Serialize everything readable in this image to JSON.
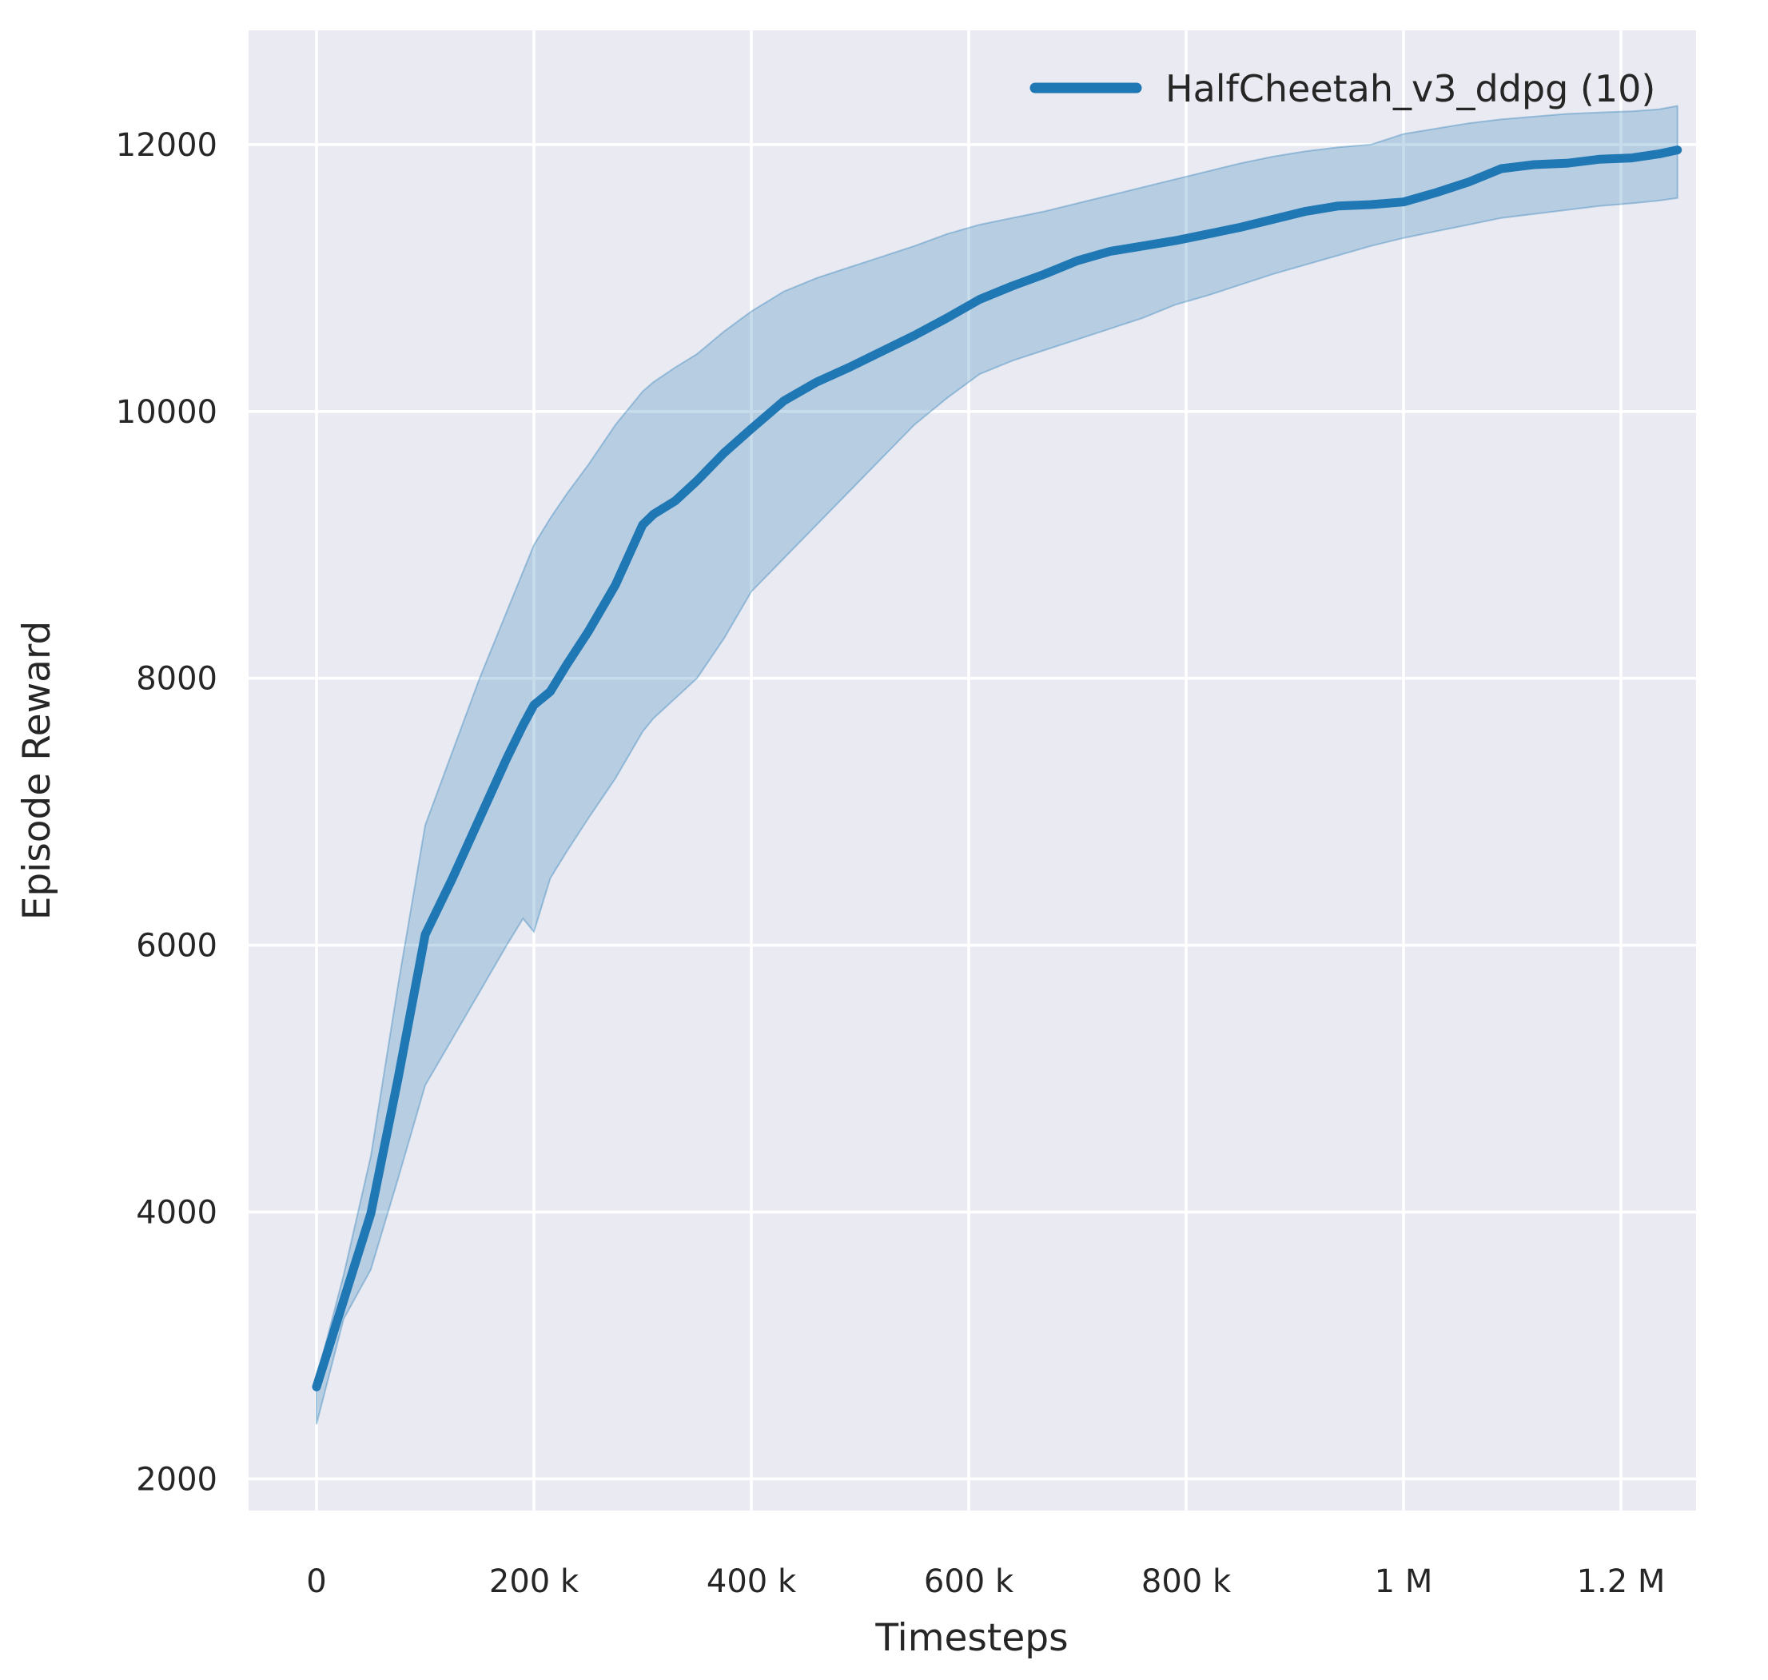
{
  "chart_data": {
    "type": "line",
    "title": "",
    "xlabel": "Timesteps",
    "ylabel": "Episode Reward",
    "legend_position": "upper right",
    "grid": true,
    "style": "seaborn-darkgrid",
    "colors": {
      "line": "#1f77b4",
      "band_fill": "rgba(31,119,180,0.25)",
      "band_edge": "rgba(31,119,180,0.35)",
      "plot_background": "#eaeaf2",
      "gridline": "#ffffff",
      "text": "#262626"
    },
    "xlim": [
      -62500,
      1269100
    ],
    "ylim": [
      1763,
      12856
    ],
    "xticks": [
      0,
      200000,
      400000,
      600000,
      800000,
      1000000,
      1200000
    ],
    "xtick_labels": [
      "0",
      "200 k",
      "400 k",
      "600 k",
      "800 k",
      "1 M",
      "1.2 M"
    ],
    "yticks": [
      2000,
      4000,
      6000,
      8000,
      10000,
      12000
    ],
    "ytick_labels": [
      "2000",
      "4000",
      "6000",
      "8000",
      "10000",
      "12000"
    ],
    "series": [
      {
        "name": "HalfCheetah_v3_ddpg (10)",
        "x": [
          0,
          25000,
          50000,
          75000,
          100000,
          125000,
          150000,
          175000,
          190000,
          200000,
          215000,
          230000,
          250000,
          275000,
          300000,
          310000,
          330000,
          350000,
          375000,
          400000,
          430000,
          460000,
          490000,
          520000,
          550000,
          580000,
          610000,
          640000,
          670000,
          700000,
          730000,
          760000,
          790000,
          820000,
          850000,
          880000,
          910000,
          940000,
          970000,
          1000000,
          1030000,
          1060000,
          1090000,
          1120000,
          1150000,
          1180000,
          1210000,
          1235000,
          1252000
        ],
        "mean": [
          2690,
          3340,
          3990,
          5000,
          6080,
          6500,
          6950,
          7400,
          7650,
          7800,
          7900,
          8100,
          8350,
          8700,
          9150,
          9230,
          9330,
          9480,
          9690,
          9870,
          10080,
          10220,
          10330,
          10450,
          10570,
          10700,
          10840,
          10940,
          11030,
          11130,
          11200,
          11240,
          11280,
          11330,
          11380,
          11440,
          11500,
          11540,
          11550,
          11570,
          11640,
          11720,
          11820,
          11850,
          11860,
          11890,
          11900,
          11930,
          11960
        ],
        "lower": [
          2410,
          3200,
          3570,
          4250,
          4950,
          5300,
          5650,
          6000,
          6200,
          6100,
          6500,
          6700,
          6950,
          7250,
          7600,
          7700,
          7850,
          8000,
          8300,
          8650,
          8900,
          9150,
          9400,
          9650,
          9900,
          10100,
          10280,
          10380,
          10460,
          10540,
          10620,
          10700,
          10800,
          10870,
          10950,
          11030,
          11100,
          11170,
          11240,
          11300,
          11350,
          11400,
          11450,
          11480,
          11510,
          11540,
          11560,
          11580,
          11600
        ],
        "upper": [
          2750,
          3530,
          4420,
          5700,
          6900,
          7450,
          8000,
          8500,
          8800,
          9000,
          9200,
          9380,
          9600,
          9900,
          10150,
          10220,
          10330,
          10430,
          10600,
          10750,
          10900,
          11000,
          11080,
          11160,
          11240,
          11330,
          11400,
          11450,
          11500,
          11560,
          11620,
          11680,
          11740,
          11800,
          11860,
          11910,
          11950,
          11980,
          12000,
          12080,
          12120,
          12160,
          12190,
          12210,
          12230,
          12240,
          12250,
          12265,
          12290
        ]
      }
    ]
  }
}
